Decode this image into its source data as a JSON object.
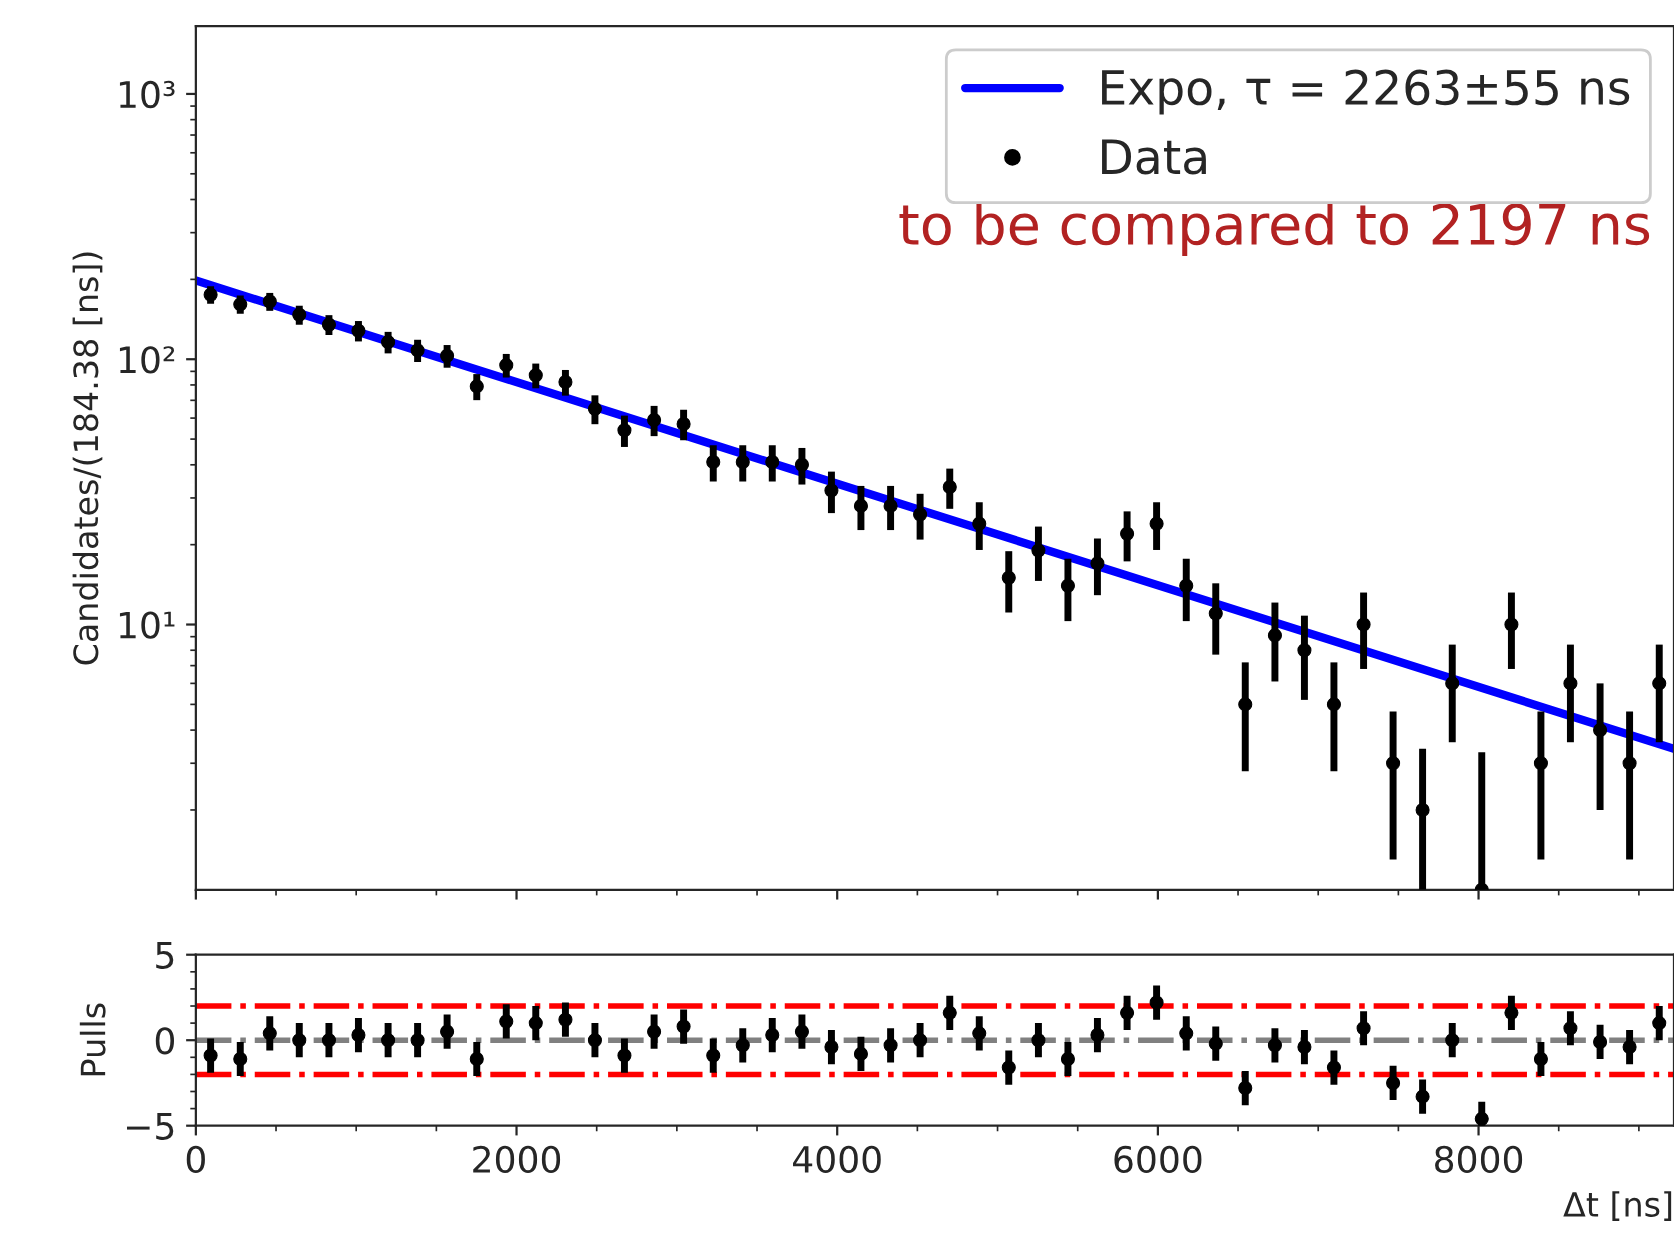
{
  "chart_data": [
    {
      "type": "scatter",
      "ylabel": "Candidates/(184.38 [ns])",
      "log": true,
      "legend": "top right",
      "tick_labels": "y",
      "xlim": [
        0,
        9219
      ],
      "xticks": [
        0,
        2000,
        4000,
        6000,
        8000
      ],
      "ylim": [
        1,
        1800
      ],
      "yticks": [
        {
          "value": 10,
          "label": "10¹"
        },
        {
          "value": 100,
          "label": "10²"
        },
        {
          "value": 1000,
          "label": "10³"
        }
      ],
      "annotations": [
        "to be compared to 2197 ns"
      ],
      "series": [
        {
          "name": "Expo, τ = 2263±55 ns",
          "type": "line",
          "color": "#0000ff",
          "x": [
            0,
            9219
          ],
          "values": [
            198,
            3.4
          ]
        },
        {
          "name": "Data",
          "color": "#000000",
          "marker": "circle",
          "x": [
            92,
            277,
            461,
            645,
            830,
            1014,
            1199,
            1383,
            1567,
            1752,
            1936,
            2120,
            2305,
            2489,
            2673,
            2858,
            3042,
            3227,
            3411,
            3595,
            3780,
            3964,
            4148,
            4333,
            4517,
            4702,
            4886,
            5070,
            5255,
            5439,
            5623,
            5808,
            5992,
            6177,
            6361,
            6545,
            6730,
            6914,
            7098,
            7283,
            7467,
            7651,
            7836,
            8020,
            8205,
            8389,
            8573,
            8758,
            8942,
            9127
          ],
          "values": [
            175,
            161,
            165,
            147,
            135,
            128,
            116,
            108,
            103,
            79,
            95,
            87,
            82,
            65,
            54,
            59,
            57,
            41,
            41,
            41,
            40,
            32,
            28,
            28,
            26,
            33,
            24,
            15,
            19,
            14,
            17,
            22,
            24,
            14,
            11,
            5,
            9.1,
            8,
            5,
            10,
            3,
            2,
            6,
            1,
            10,
            3,
            6,
            4,
            3,
            6
          ],
          "errors": [
            13.2,
            12.7,
            12.8,
            12.1,
            11.6,
            11.3,
            10.8,
            10.4,
            10.1,
            8.9,
            9.7,
            9.3,
            9.1,
            8.1,
            7.3,
            7.7,
            7.5,
            6.4,
            6.4,
            6.4,
            6.3,
            5.7,
            5.3,
            5.3,
            5.1,
            5.7,
            4.9,
            3.9,
            4.4,
            3.7,
            4.1,
            4.7,
            4.9,
            3.7,
            3.3,
            2.2,
            3.0,
            2.8,
            2.2,
            3.2,
            1.7,
            [
              1,
              3.4
            ],
            2.4,
            [
              1,
              3.3
            ],
            3.2,
            1.7,
            2.4,
            2.0,
            1.7,
            2.4
          ]
        }
      ]
    },
    {
      "type": "scatter",
      "xlabel": "Δt [ns]",
      "ylabel": "Pulls",
      "marker": "circle",
      "xlim": [
        0,
        9219
      ],
      "xticks": [
        0,
        2000,
        4000,
        6000,
        8000
      ],
      "ylim": [
        -5,
        5
      ],
      "yticks": [
        {
          "value": -5,
          "label": "−5"
        },
        0,
        5
      ],
      "ref_lines": [
        {
          "axis": "y",
          "value": 2,
          "color": "#ff0000",
          "line_style": "dashdot"
        },
        {
          "axis": "y",
          "value": -2,
          "color": "#ff0000",
          "line_style": "dashdot"
        },
        {
          "axis": "y",
          "value": 0,
          "color": "#808080",
          "line_style": "dashdot"
        }
      ],
      "series": [
        {
          "color": "#000000",
          "x": [
            92,
            277,
            461,
            645,
            830,
            1014,
            1199,
            1383,
            1567,
            1752,
            1936,
            2120,
            2305,
            2489,
            2673,
            2858,
            3042,
            3227,
            3411,
            3595,
            3780,
            3964,
            4148,
            4333,
            4517,
            4702,
            4886,
            5070,
            5255,
            5439,
            5623,
            5808,
            5992,
            6177,
            6361,
            6545,
            6730,
            6914,
            7098,
            7283,
            7467,
            7651,
            7836,
            8020,
            8205,
            8389,
            8573,
            8758,
            8942,
            9127
          ],
          "values": [
            -0.9,
            -1.1,
            0.4,
            0,
            0,
            0.3,
            0,
            0,
            0.5,
            -1.1,
            1.1,
            1.0,
            1.2,
            0,
            -0.9,
            0.5,
            0.8,
            -0.9,
            -0.3,
            0.3,
            0.5,
            -0.4,
            -0.8,
            -0.3,
            0,
            1.6,
            0.4,
            -1.6,
            0,
            -1.1,
            0.3,
            1.6,
            2.2,
            0.4,
            -0.2,
            -2.8,
            -0.3,
            -0.4,
            -1.6,
            0.7,
            -2.5,
            -3.3,
            0,
            -4.6,
            1.6,
            -1.1,
            0.7,
            -0.1,
            -0.4,
            1.0
          ],
          "errors": [
            1,
            1,
            1,
            1,
            1,
            1,
            1,
            1,
            1,
            1,
            1,
            1,
            1,
            1,
            1,
            1,
            1,
            1,
            1,
            1,
            1,
            1,
            1,
            1,
            1,
            1,
            1,
            1,
            1,
            1,
            1,
            1,
            1,
            1,
            1,
            1,
            1,
            1,
            1,
            1,
            1,
            1,
            1,
            1,
            1,
            1,
            1,
            1,
            1,
            1
          ]
        }
      ]
    }
  ]
}
